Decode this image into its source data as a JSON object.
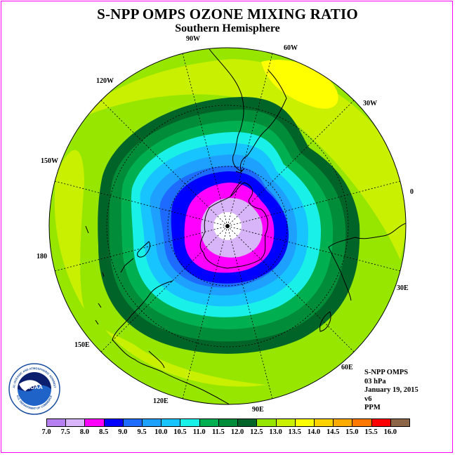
{
  "title": "S-NPP OMPS OZONE MIXING RATIO",
  "subtitle": "Southern Hemisphere",
  "longitude_labels": {
    "lon_90w": "90W",
    "lon_60w": "60W",
    "lon_30w": "30W",
    "lon_0": "0",
    "lon_30e": "30E",
    "lon_60e": "60E",
    "lon_90e": "90E",
    "lon_120e": "120E",
    "lon_150e": "150E",
    "lon_180": "180",
    "lon_150w": "150W",
    "lon_120w": "120W"
  },
  "info": {
    "instrument": "S-NPP OMPS",
    "level": "03 hPa",
    "date": "January 19, 2015",
    "version": "v6",
    "units": "PPM"
  },
  "logo": {
    "text": "NOAA",
    "ring_text": "NATIONAL OCEANIC AND ATMOSPHERIC ADMINISTRATION",
    "ring_text_bottom": "U.S. DEPARTMENT OF COMMERCE"
  },
  "colorbar": {
    "ticks": [
      "7.0",
      "7.5",
      "8.0",
      "8.5",
      "9.0",
      "9.5",
      "10.0",
      "10.5",
      "11.0",
      "11.5",
      "12.0",
      "12.5",
      "13.0",
      "13.5",
      "14.0",
      "14.5",
      "15.0",
      "15.5",
      "16.0"
    ],
    "colors": [
      "#b67ff0",
      "#d8b4f8",
      "#ff00ff",
      "#0000ff",
      "#1e6cff",
      "#1ea0ff",
      "#18c4ff",
      "#18f0e8",
      "#00b050",
      "#008c38",
      "#006428",
      "#96e600",
      "#c8f000",
      "#ffff00",
      "#ffd200",
      "#ffaa00",
      "#ff7800",
      "#ff0000",
      "#8c6446"
    ]
  },
  "colors": {
    "frame_border": "#ff00ff",
    "graticule": "#000000",
    "coastline": "#000000"
  }
}
